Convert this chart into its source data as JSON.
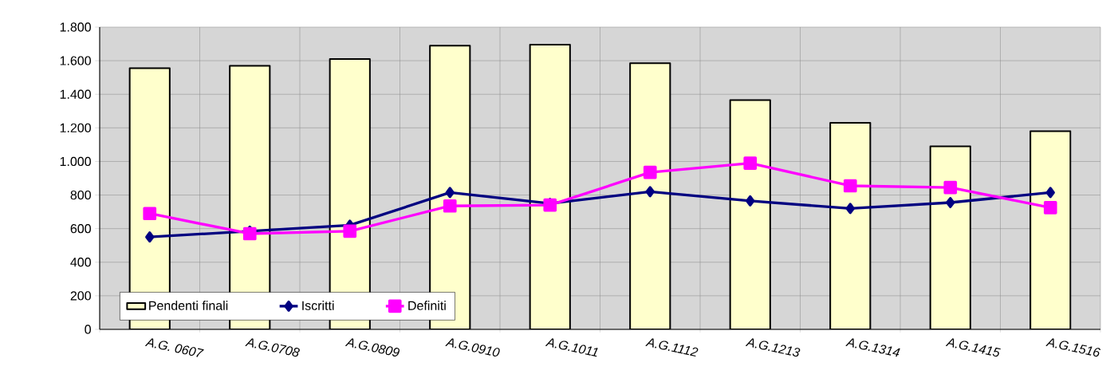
{
  "chart_data": {
    "type": "bar",
    "categories": [
      "A.G. 0607",
      "A.G.0708",
      "A.G.0809",
      "A.G.0910",
      "A.G.1011",
      "A.G.1112",
      "A.G.1213",
      "A.G.1314",
      "A.G.1415",
      "A.G.1516"
    ],
    "series": [
      {
        "name": "Pendenti finali",
        "color": "#ffffcc",
        "values": [
          1555,
          1570,
          1610,
          1690,
          1695,
          1585,
          1365,
          1230,
          1090,
          1180
        ]
      },
      {
        "name": "Iscritti",
        "type": "line",
        "color": "#000080",
        "marker": "diamond",
        "values": [
          550,
          585,
          620,
          815,
          750,
          820,
          765,
          720,
          755,
          815
        ]
      },
      {
        "name": "Definiti",
        "type": "line",
        "color": "#ff00ff",
        "marker": "square",
        "values": [
          690,
          570,
          585,
          735,
          740,
          935,
          990,
          855,
          845,
          725
        ]
      }
    ],
    "ylim": [
      0,
      1800
    ],
    "yticks": [
      0,
      200,
      400,
      600,
      800,
      {
        "value": 1000,
        "label": "1.000"
      },
      {
        "value": 1200,
        "label": "1.200"
      },
      {
        "value": 1400,
        "label": "1.400"
      },
      {
        "value": 1600,
        "label": "1.600"
      },
      {
        "value": 1800,
        "label": "1.800"
      }
    ],
    "grid": true,
    "legend": "bottom left"
  }
}
